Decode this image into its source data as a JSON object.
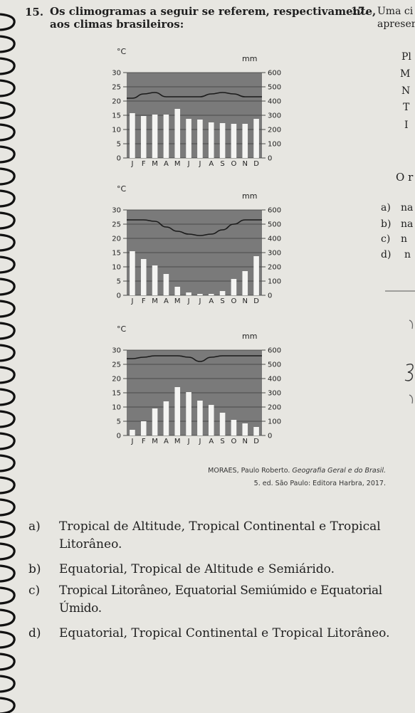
{
  "q15": {
    "number": "15.",
    "text_line1": "Os climogramas a seguir se referem, respectivamente,",
    "text_line2": "aos climas brasileiros:"
  },
  "q17": {
    "number": "17.",
    "text_line1": "Uma ci",
    "text_line2": "apreser",
    "fragments": [
      "Pl",
      "M",
      "N",
      "T",
      "I"
    ],
    "partial_text": "O r",
    "options": [
      {
        "letter": "a)",
        "text": "na"
      },
      {
        "letter": "b)",
        "text": "na"
      },
      {
        "letter": "c)",
        "text": "n"
      },
      {
        "letter": "d)",
        "text": "n"
      }
    ]
  },
  "units": {
    "temp": "°C",
    "precip": "mm"
  },
  "chart_data": [
    {
      "type": "bar",
      "categories": [
        "J",
        "F",
        "M",
        "A",
        "M",
        "J",
        "J",
        "A",
        "S",
        "O",
        "N",
        "D"
      ],
      "temp_ticks": [
        0,
        5,
        10,
        15,
        20,
        25,
        30
      ],
      "precip_ticks": [
        0,
        100,
        200,
        300,
        400,
        500,
        600
      ],
      "precip_values": [
        315,
        295,
        305,
        305,
        345,
        275,
        270,
        250,
        245,
        240,
        240,
        275
      ],
      "temp_line": [
        21,
        22.5,
        23,
        21.5,
        21.5,
        21.5,
        21.5,
        22.5,
        23,
        22.5,
        21.5,
        21.5
      ]
    },
    {
      "type": "bar",
      "categories": [
        "J",
        "F",
        "M",
        "A",
        "M",
        "J",
        "J",
        "A",
        "S",
        "O",
        "N",
        "D"
      ],
      "temp_ticks": [
        0,
        5,
        10,
        15,
        20,
        25,
        30
      ],
      "precip_ticks": [
        0,
        100,
        200,
        300,
        400,
        500,
        600
      ],
      "precip_values": [
        310,
        255,
        210,
        150,
        60,
        20,
        10,
        10,
        30,
        115,
        170,
        275
      ],
      "temp_line": [
        26.5,
        26.5,
        26,
        24,
        22.5,
        21.5,
        21,
        21.5,
        23,
        25,
        26.5,
        26.5
      ]
    },
    {
      "type": "bar",
      "categories": [
        "J",
        "F",
        "M",
        "A",
        "M",
        "J",
        "J",
        "A",
        "S",
        "O",
        "N",
        "D"
      ],
      "temp_ticks": [
        0,
        5,
        10,
        15,
        20,
        25,
        30
      ],
      "precip_ticks": [
        0,
        100,
        200,
        300,
        400,
        500,
        600
      ],
      "precip_values": [
        40,
        100,
        190,
        240,
        340,
        305,
        245,
        215,
        160,
        110,
        85,
        60
      ],
      "temp_line": [
        27,
        27.5,
        28,
        28,
        28,
        27.5,
        26,
        27.5,
        28,
        28,
        28,
        28
      ]
    }
  ],
  "source": {
    "line1_author": "MORAES, Paulo Roberto.",
    "line1_title": "Geografia Geral e do Brasil.",
    "line2": "5. ed. São Paulo: Editora Harbra, 2017."
  },
  "answers": [
    {
      "letter": "a)",
      "text": "Tropical de Altitude, Tropical Continental e Tropical Litorâneo."
    },
    {
      "letter": "b)",
      "text": "Equatorial, Tropical de Altitude e Semiárido."
    },
    {
      "letter": "c)",
      "text": "Tropical Litorâneo, Equatorial Semiúmido e Equatorial Úmido."
    },
    {
      "letter": "d)",
      "text": "Equatorial, Tropical Continental e Tropical Litorâneo."
    }
  ]
}
